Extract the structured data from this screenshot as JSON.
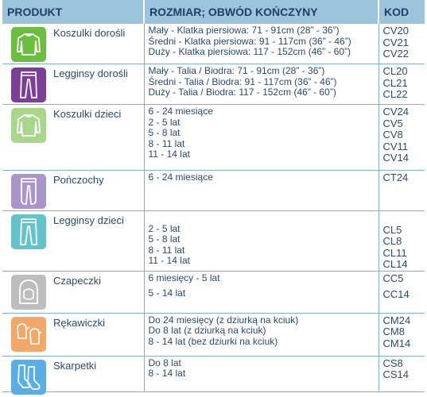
{
  "header": {
    "produkt": "PRODUKT",
    "rozmiar": "ROZMIAR; OBWÓD KOŃCZYNY",
    "kod": "KOD"
  },
  "rows": [
    {
      "name": "Koszulki dorośli",
      "icon": "long-sleeve-shirt-icon",
      "color": "#6cbf3e",
      "sizes": [
        "Mały - Klatka piersiowa: 71 - 91cm (28” - 36”)",
        "Średni - Klatka piersiowa: 91 - 117cm (36” - 46”)",
        "Duży - Klatka piersiowa: 117 - 152cm (46” - 60”)"
      ],
      "codes": [
        "CV20",
        "CV21",
        "CV22"
      ]
    },
    {
      "name": "Legginsy dorośli",
      "icon": "leggings-icon",
      "color": "#7b3f98",
      "sizes": [
        "Mały - Talia / Biodra: 71 - 91cm (28” - 36”)",
        "Średni - Talia / Biodra: 91 - 117cm (36” - 46”)",
        "Duży - Talia / Biodra: 117 - 152cm (46” - 60”)"
      ],
      "codes": [
        "CL20",
        "CL21",
        "CL22"
      ]
    },
    {
      "name": "Koszulki dzieci",
      "icon": "long-sleeve-shirt-icon",
      "color": "#a8d68a",
      "sizes": [
        "6 - 24 miesiące",
        "2 - 5 lat",
        "5 - 8 lat",
        "8 - 11 lat",
        "11 - 14 lat"
      ],
      "codes": [
        "CV24",
        "CV5",
        "CV8",
        "CV11",
        "CV14"
      ]
    },
    {
      "name": "Pończochy",
      "icon": "tights-icon",
      "color": "#a994cc",
      "sizes": [
        "6 - 24 miesiące"
      ],
      "codes": [
        "CT24"
      ]
    },
    {
      "name": "Legginsy dzieci",
      "icon": "leggings-icon",
      "color": "#62c4c9",
      "sizes": [
        "",
        "2 - 5 lat",
        "5 - 8 lat",
        "8 - 11 lat",
        "11 - 14 lat"
      ],
      "codes": [
        "",
        "CL5",
        "CL8",
        "CL11",
        "CL14"
      ]
    },
    {
      "name": "Czapeczki",
      "icon": "hood-cap-icon",
      "color": "#bdbdbd",
      "sizes": [
        "6 miesięcy - 5 lat",
        "5 - 14 lat"
      ],
      "codes": [
        "CC5",
        "CC14"
      ]
    },
    {
      "name": "Rękawiczki",
      "icon": "mittens-icon",
      "color": "#f2a868",
      "sizes": [
        "Do 24 miesięcy (z dziurką na kciuk)",
        "Do 8 lat (z dziurką na kciuk)",
        "8 - 14 lat (bez dziurki na kciuk)"
      ],
      "codes": [
        "CM24",
        "CM8",
        "CM14"
      ]
    },
    {
      "name": "Skarpetki",
      "icon": "socks-icon",
      "color": "#5aaee3",
      "sizes": [
        "Do 8 lat",
        "8 - 14 lat"
      ],
      "codes": [
        "CS8",
        "CS14"
      ]
    }
  ]
}
